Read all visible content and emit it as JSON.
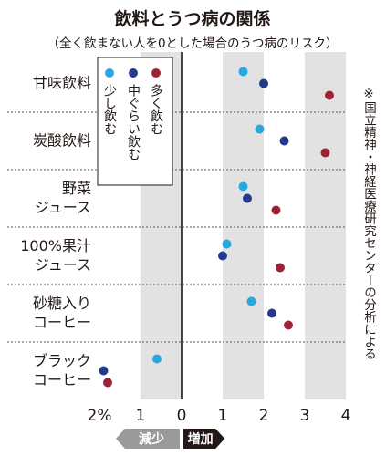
{
  "chart_data": {
    "type": "scatter",
    "title": "飲料とうつ病の関係",
    "subtitle": "（全く飲まない人を0とした場合のうつ病のリスク）",
    "source_note": "※国立精神・神経医療研究センターの分析による",
    "x_tick_labels": [
      "2%",
      "1",
      "0",
      "1",
      "2",
      "3",
      "4"
    ],
    "x_tick_values": [
      -2,
      -1,
      0,
      1,
      2,
      3,
      4
    ],
    "xlim": [
      -2,
      4
    ],
    "shaded_bands": [
      [
        -1,
        0
      ],
      [
        1,
        2
      ],
      [
        3,
        4
      ]
    ],
    "direction_labels": {
      "decrease": "減少",
      "increase": "増加"
    },
    "series": [
      {
        "name": "少し飲む",
        "color": "#29a8e0"
      },
      {
        "name": "中ぐらい飲む",
        "color": "#253a8e"
      },
      {
        "name": "多く飲む",
        "color": "#9b2335"
      }
    ],
    "categories": [
      {
        "label_lines": [
          "甘味飲料"
        ],
        "values": [
          1.5,
          2.0,
          3.6
        ]
      },
      {
        "label_lines": [
          "炭酸飲料"
        ],
        "values": [
          1.9,
          2.5,
          3.5
        ]
      },
      {
        "label_lines": [
          "野菜",
          "ジュース"
        ],
        "values": [
          1.5,
          1.6,
          2.3
        ]
      },
      {
        "label_lines": [
          "100%果汁",
          "ジュース"
        ],
        "values": [
          1.1,
          1.0,
          2.4
        ]
      },
      {
        "label_lines": [
          "砂糖入り",
          "コーヒー"
        ],
        "values": [
          1.7,
          2.2,
          2.6
        ]
      },
      {
        "label_lines": [
          "ブラック",
          "コーヒー"
        ],
        "values": [
          -0.6,
          -1.9,
          -1.8
        ]
      }
    ]
  }
}
